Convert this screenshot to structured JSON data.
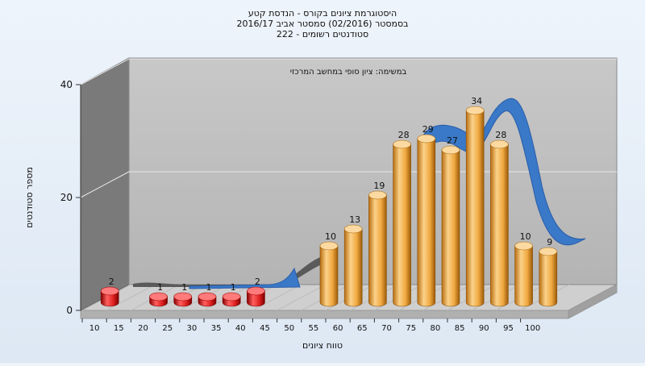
{
  "chart_data": {
    "type": "bar",
    "title_lines": [
      "היסטוגרמת ציונים בקורס - הנדסת קטע",
      "בסמסטר  (02/2016)  סמסטר אביב 2016/17",
      "סטודנטים רשומים - 222"
    ],
    "annotation": "במשימה: ציון סופי במחשב המרכזי",
    "xlabel": "טווח ציונים",
    "ylabel": "מספר סטודנטים",
    "x_ticks": [
      "10",
      "15",
      "20",
      "25",
      "30",
      "35",
      "40",
      "45",
      "50",
      "55",
      "60",
      "65",
      "70",
      "75",
      "80",
      "85",
      "90",
      "95",
      "100"
    ],
    "y_ticks": [
      "0",
      "20",
      "40"
    ],
    "ylim": [
      0,
      40
    ],
    "categories": [
      "10",
      "20",
      "25",
      "30",
      "35",
      "40",
      "55",
      "60",
      "65",
      "70",
      "75",
      "80",
      "85",
      "90",
      "95",
      "100"
    ],
    "values": [
      2,
      1,
      1,
      1,
      1,
      2,
      10,
      13,
      19,
      28,
      29,
      27,
      34,
      28,
      10,
      9
    ],
    "failing_below": 55,
    "colors": {
      "failing_bar": "#e02020",
      "passing_bar": "#f0a840",
      "trend_ribbon": "#3a78c8",
      "back_wall": "#c0c0c0",
      "side_wall": "#7a7a7a",
      "floor": "#cccccc"
    },
    "grid": true
  }
}
